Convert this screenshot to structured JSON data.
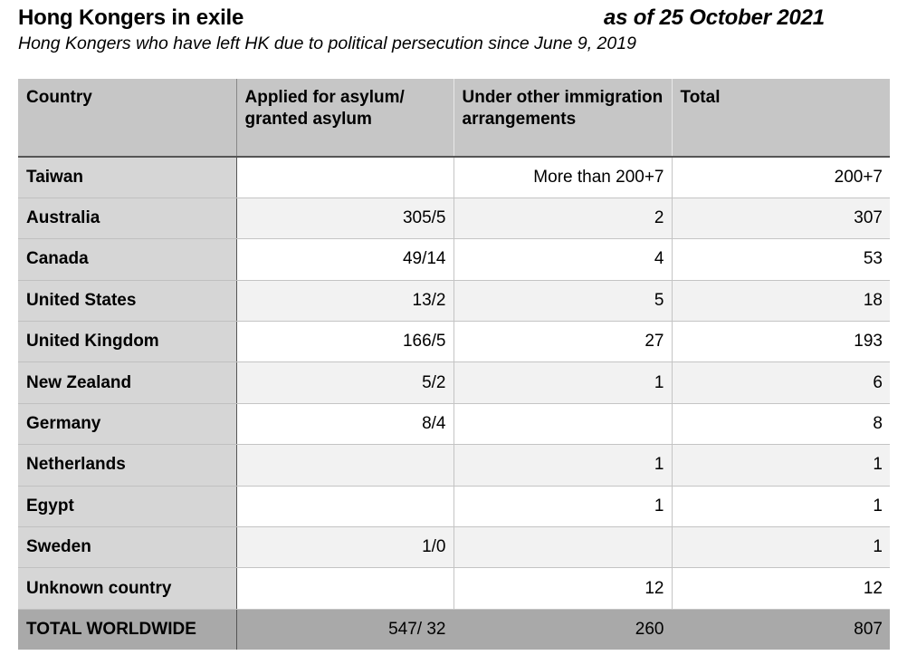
{
  "header": {
    "title": "Hong Kongers in exile",
    "date": "as of 25 October 2021",
    "subtitle": "Hong Kongers who have left HK due to political persecution since June 9, 2019"
  },
  "table": {
    "columns": [
      "Country",
      "Applied for asylum/ granted asylum",
      "Under other immigration arrangements",
      "Total"
    ],
    "rows": [
      {
        "country": "Taiwan",
        "asylum": "",
        "other": "More than 200+7",
        "total": "200+7"
      },
      {
        "country": "Australia",
        "asylum": "305/5",
        "other": "2",
        "total": "307"
      },
      {
        "country": "Canada",
        "asylum": "49/14",
        "other": "4",
        "total": "53"
      },
      {
        "country": "United States",
        "asylum": "13/2",
        "other": "5",
        "total": "18"
      },
      {
        "country": "United Kingdom",
        "asylum": "166/5",
        "other": "27",
        "total": "193"
      },
      {
        "country": "New Zealand",
        "asylum": "5/2",
        "other": "1",
        "total": "6"
      },
      {
        "country": "Germany",
        "asylum": "8/4",
        "other": "",
        "total": "8"
      },
      {
        "country": "Netherlands",
        "asylum": "",
        "other": "1",
        "total": "1"
      },
      {
        "country": "Egypt",
        "asylum": "",
        "other": "1",
        "total": "1"
      },
      {
        "country": "Sweden",
        "asylum": "1/0",
        "other": "",
        "total": "1"
      },
      {
        "country": "Unknown country",
        "asylum": "",
        "other": "12",
        "total": "12"
      }
    ],
    "total_row": {
      "country": "TOTAL WORLDWIDE",
      "asylum": "547/ 32",
      "other": "260",
      "total": "807"
    }
  }
}
